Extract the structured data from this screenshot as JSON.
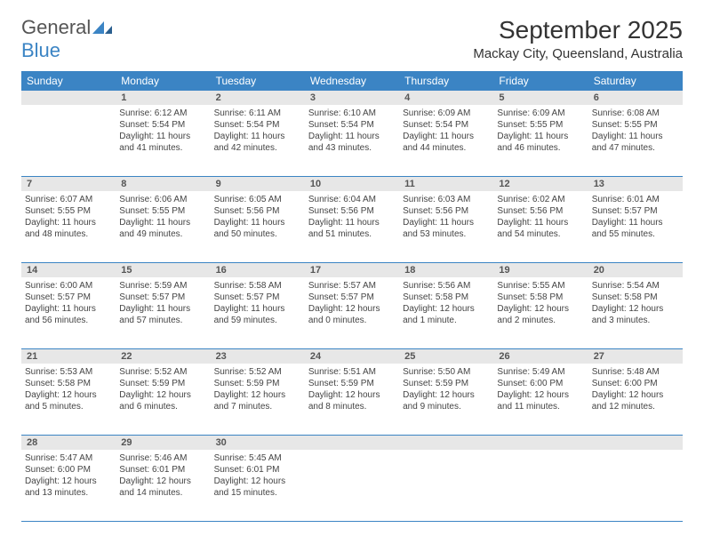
{
  "logo": {
    "text1": "General",
    "text2": "Blue",
    "shape_color": "#3b84c4"
  },
  "header": {
    "title": "September 2025",
    "title_fontsize": 28,
    "location": "Mackay City, Queensland, Australia",
    "location_fontsize": 15
  },
  "colors": {
    "header_bar": "#3b84c4",
    "daynum_bg": "#e7e7e7",
    "text": "#333333",
    "week_border": "#3b84c4"
  },
  "days_of_week": [
    "Sunday",
    "Monday",
    "Tuesday",
    "Wednesday",
    "Thursday",
    "Friday",
    "Saturday"
  ],
  "weeks": [
    [
      null,
      {
        "n": "1",
        "sunrise": "6:12 AM",
        "sunset": "5:54 PM",
        "day_h": 11,
        "day_m": 41
      },
      {
        "n": "2",
        "sunrise": "6:11 AM",
        "sunset": "5:54 PM",
        "day_h": 11,
        "day_m": 42
      },
      {
        "n": "3",
        "sunrise": "6:10 AM",
        "sunset": "5:54 PM",
        "day_h": 11,
        "day_m": 43
      },
      {
        "n": "4",
        "sunrise": "6:09 AM",
        "sunset": "5:54 PM",
        "day_h": 11,
        "day_m": 44
      },
      {
        "n": "5",
        "sunrise": "6:09 AM",
        "sunset": "5:55 PM",
        "day_h": 11,
        "day_m": 46
      },
      {
        "n": "6",
        "sunrise": "6:08 AM",
        "sunset": "5:55 PM",
        "day_h": 11,
        "day_m": 47
      }
    ],
    [
      {
        "n": "7",
        "sunrise": "6:07 AM",
        "sunset": "5:55 PM",
        "day_h": 11,
        "day_m": 48
      },
      {
        "n": "8",
        "sunrise": "6:06 AM",
        "sunset": "5:55 PM",
        "day_h": 11,
        "day_m": 49
      },
      {
        "n": "9",
        "sunrise": "6:05 AM",
        "sunset": "5:56 PM",
        "day_h": 11,
        "day_m": 50
      },
      {
        "n": "10",
        "sunrise": "6:04 AM",
        "sunset": "5:56 PM",
        "day_h": 11,
        "day_m": 51
      },
      {
        "n": "11",
        "sunrise": "6:03 AM",
        "sunset": "5:56 PM",
        "day_h": 11,
        "day_m": 53
      },
      {
        "n": "12",
        "sunrise": "6:02 AM",
        "sunset": "5:56 PM",
        "day_h": 11,
        "day_m": 54
      },
      {
        "n": "13",
        "sunrise": "6:01 AM",
        "sunset": "5:57 PM",
        "day_h": 11,
        "day_m": 55
      }
    ],
    [
      {
        "n": "14",
        "sunrise": "6:00 AM",
        "sunset": "5:57 PM",
        "day_h": 11,
        "day_m": 56
      },
      {
        "n": "15",
        "sunrise": "5:59 AM",
        "sunset": "5:57 PM",
        "day_h": 11,
        "day_m": 57
      },
      {
        "n": "16",
        "sunrise": "5:58 AM",
        "sunset": "5:57 PM",
        "day_h": 11,
        "day_m": 59
      },
      {
        "n": "17",
        "sunrise": "5:57 AM",
        "sunset": "5:57 PM",
        "day_h": 12,
        "day_m": 0
      },
      {
        "n": "18",
        "sunrise": "5:56 AM",
        "sunset": "5:58 PM",
        "day_h": 12,
        "day_m": 1
      },
      {
        "n": "19",
        "sunrise": "5:55 AM",
        "sunset": "5:58 PM",
        "day_h": 12,
        "day_m": 2
      },
      {
        "n": "20",
        "sunrise": "5:54 AM",
        "sunset": "5:58 PM",
        "day_h": 12,
        "day_m": 3
      }
    ],
    [
      {
        "n": "21",
        "sunrise": "5:53 AM",
        "sunset": "5:58 PM",
        "day_h": 12,
        "day_m": 5
      },
      {
        "n": "22",
        "sunrise": "5:52 AM",
        "sunset": "5:59 PM",
        "day_h": 12,
        "day_m": 6
      },
      {
        "n": "23",
        "sunrise": "5:52 AM",
        "sunset": "5:59 PM",
        "day_h": 12,
        "day_m": 7
      },
      {
        "n": "24",
        "sunrise": "5:51 AM",
        "sunset": "5:59 PM",
        "day_h": 12,
        "day_m": 8
      },
      {
        "n": "25",
        "sunrise": "5:50 AM",
        "sunset": "5:59 PM",
        "day_h": 12,
        "day_m": 9
      },
      {
        "n": "26",
        "sunrise": "5:49 AM",
        "sunset": "6:00 PM",
        "day_h": 12,
        "day_m": 11
      },
      {
        "n": "27",
        "sunrise": "5:48 AM",
        "sunset": "6:00 PM",
        "day_h": 12,
        "day_m": 12
      }
    ],
    [
      {
        "n": "28",
        "sunrise": "5:47 AM",
        "sunset": "6:00 PM",
        "day_h": 12,
        "day_m": 13
      },
      {
        "n": "29",
        "sunrise": "5:46 AM",
        "sunset": "6:01 PM",
        "day_h": 12,
        "day_m": 14
      },
      {
        "n": "30",
        "sunrise": "5:45 AM",
        "sunset": "6:01 PM",
        "day_h": 12,
        "day_m": 15
      },
      null,
      null,
      null,
      null
    ]
  ],
  "labels": {
    "sunrise_prefix": "Sunrise: ",
    "sunset_prefix": "Sunset: ",
    "daylight_prefix": "Daylight: ",
    "hours_word": " hours",
    "and_word": "and ",
    "minutes_word": " minutes.",
    "minute_word": " minute."
  }
}
